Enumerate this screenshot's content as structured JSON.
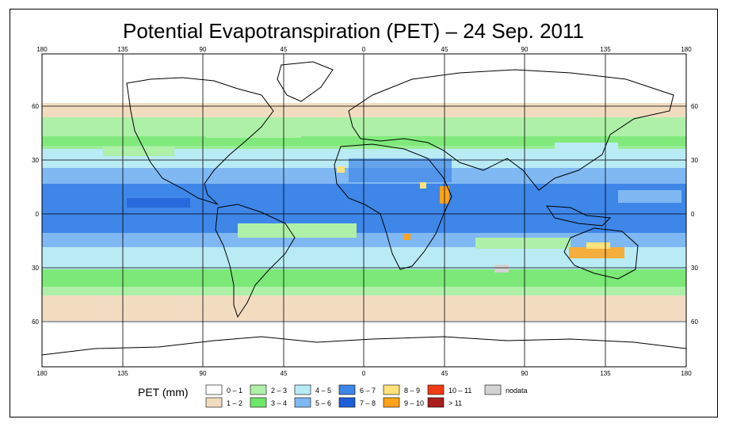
{
  "title": "Potential Evapotranspiration (PET) – 24 Sep. 2011",
  "axes": {
    "lon_ticks": [
      "180",
      "135",
      "90",
      "45",
      "0",
      "45",
      "90",
      "135",
      "180"
    ],
    "lat_ticks": [
      "60",
      "30",
      "0",
      "30",
      "60"
    ]
  },
  "legend": {
    "label": "PET (mm)",
    "items": [
      {
        "label": "0 – 1",
        "color": "#ffffff"
      },
      {
        "label": "1 – 2",
        "color": "#f2dcc0"
      },
      {
        "label": "2 – 3",
        "color": "#aef0a8"
      },
      {
        "label": "3 – 4",
        "color": "#6ee66a"
      },
      {
        "label": "4 – 5",
        "color": "#b9ebf5"
      },
      {
        "label": "5 – 6",
        "color": "#7fb8f2"
      },
      {
        "label": "6 – 7",
        "color": "#3e86e8"
      },
      {
        "label": "7 – 8",
        "color": "#1f5ed8"
      },
      {
        "label": "8 – 9",
        "color": "#ffe27a"
      },
      {
        "label": "9 – 10",
        "color": "#ffa21a"
      },
      {
        "label": "10 – 11",
        "color": "#f03c14"
      },
      {
        "label": "> 11",
        "color": "#a81e1e"
      },
      {
        "label": "nodata",
        "color": "#d3d3d3"
      }
    ]
  }
}
